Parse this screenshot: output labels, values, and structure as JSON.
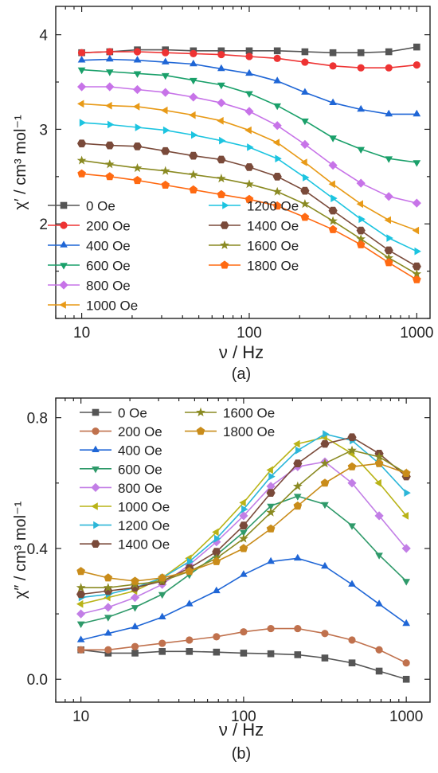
{
  "chart_data": [
    {
      "type": "line",
      "panel_label": "(a)",
      "xlabel": "ν / Hz",
      "ylabel": "χ′ / cm³ mol⁻¹",
      "xscale": "log",
      "xlim": [
        7,
        1200
      ],
      "ylim": [
        1.0,
        4.3
      ],
      "xticks": [
        10,
        100,
        1000
      ],
      "yticks": [
        2,
        3,
        4
      ],
      "legend_position": "bottom-left, two columns",
      "x": [
        10,
        14.7,
        21.5,
        31.6,
        46.4,
        68.1,
        100,
        147,
        215,
        316,
        464,
        681,
        1000
      ],
      "series": [
        {
          "name": "0 Oe",
          "color": "#555555",
          "marker": "square",
          "values": [
            3.81,
            3.82,
            3.84,
            3.84,
            3.83,
            3.83,
            3.83,
            3.83,
            3.82,
            3.81,
            3.81,
            3.82,
            3.87
          ]
        },
        {
          "name": "200 Oe",
          "color": "#ee3333",
          "marker": "circle",
          "values": [
            3.81,
            3.82,
            3.82,
            3.81,
            3.8,
            3.79,
            3.77,
            3.75,
            3.71,
            3.67,
            3.65,
            3.65,
            3.68
          ]
        },
        {
          "name": "400 Oe",
          "color": "#1f66d6",
          "marker": "triangle-up",
          "values": [
            3.73,
            3.74,
            3.73,
            3.71,
            3.69,
            3.64,
            3.59,
            3.51,
            3.39,
            3.28,
            3.21,
            3.16,
            3.16
          ]
        },
        {
          "name": "600 Oe",
          "color": "#1aa06a",
          "marker": "triangle-down",
          "values": [
            3.63,
            3.61,
            3.59,
            3.57,
            3.52,
            3.47,
            3.38,
            3.25,
            3.09,
            2.91,
            2.79,
            2.69,
            2.65
          ]
        },
        {
          "name": "800 Oe",
          "color": "#c773e8",
          "marker": "diamond",
          "values": [
            3.45,
            3.45,
            3.42,
            3.39,
            3.34,
            3.28,
            3.19,
            3.04,
            2.84,
            2.62,
            2.43,
            2.29,
            2.22
          ]
        },
        {
          "name": "1000 Oe",
          "color": "#e89a17",
          "marker": "triangle-left",
          "values": [
            3.27,
            3.25,
            3.24,
            3.2,
            3.15,
            3.09,
            2.99,
            2.86,
            2.65,
            2.42,
            2.21,
            2.04,
            1.93
          ]
        },
        {
          "name": "1200 Oe",
          "color": "#1cc4e0",
          "marker": "triangle-right",
          "values": [
            3.07,
            3.05,
            3.02,
            2.99,
            2.94,
            2.88,
            2.81,
            2.69,
            2.49,
            2.27,
            2.05,
            1.85,
            1.71
          ]
        },
        {
          "name": "1400 Oe",
          "color": "#7a4a3a",
          "marker": "hexagon",
          "values": [
            2.85,
            2.83,
            2.82,
            2.77,
            2.72,
            2.68,
            2.6,
            2.5,
            2.35,
            2.14,
            1.93,
            1.72,
            1.55
          ]
        },
        {
          "name": "1600 Oe",
          "color": "#8a8a22",
          "marker": "star",
          "values": [
            2.67,
            2.63,
            2.59,
            2.56,
            2.52,
            2.48,
            2.42,
            2.34,
            2.21,
            2.03,
            1.84,
            1.64,
            1.47
          ]
        },
        {
          "name": "1800 Oe",
          "color": "#ff6a12",
          "marker": "pentagon",
          "values": [
            2.53,
            2.5,
            2.46,
            2.41,
            2.36,
            2.31,
            2.26,
            2.19,
            2.07,
            1.94,
            1.78,
            1.59,
            1.41
          ]
        }
      ]
    },
    {
      "type": "line",
      "panel_label": "(b)",
      "xlabel": "ν / Hz",
      "ylabel": "χ″ / cm³ mol⁻¹",
      "xscale": "log",
      "xlim": [
        7,
        1400
      ],
      "ylim": [
        -0.07,
        0.86
      ],
      "xticks": [
        10,
        100,
        1000
      ],
      "yticks": [
        0.0,
        0.4,
        0.8
      ],
      "legend_position": "top-left, two columns",
      "x": [
        10,
        14.7,
        21.5,
        31.6,
        46.4,
        68.1,
        100,
        147,
        215,
        316,
        464,
        681,
        1000
      ],
      "series": [
        {
          "name": "0 Oe",
          "color": "#555555",
          "marker": "square",
          "values": [
            0.09,
            0.08,
            0.08,
            0.085,
            0.085,
            0.083,
            0.08,
            0.078,
            0.075,
            0.065,
            0.05,
            0.025,
            0.0
          ]
        },
        {
          "name": "200 Oe",
          "color": "#c0714d",
          "marker": "circle",
          "values": [
            0.09,
            0.09,
            0.1,
            0.11,
            0.12,
            0.13,
            0.145,
            0.155,
            0.155,
            0.14,
            0.12,
            0.09,
            0.05
          ]
        },
        {
          "name": "400 Oe",
          "color": "#1f66d6",
          "marker": "triangle-up",
          "values": [
            0.12,
            0.14,
            0.16,
            0.19,
            0.23,
            0.27,
            0.32,
            0.36,
            0.37,
            0.345,
            0.29,
            0.23,
            0.17
          ]
        },
        {
          "name": "600 Oe",
          "color": "#2f9a6a",
          "marker": "triangle-down",
          "values": [
            0.17,
            0.19,
            0.22,
            0.26,
            0.32,
            0.38,
            0.45,
            0.53,
            0.56,
            0.535,
            0.47,
            0.38,
            0.3
          ]
        },
        {
          "name": "800 Oe",
          "color": "#c27ee6",
          "marker": "diamond",
          "values": [
            0.2,
            0.22,
            0.25,
            0.29,
            0.35,
            0.42,
            0.5,
            0.59,
            0.65,
            0.665,
            0.6,
            0.5,
            0.4
          ]
        },
        {
          "name": "1000 Oe",
          "color": "#b9b317",
          "marker": "triangle-left",
          "values": [
            0.23,
            0.25,
            0.27,
            0.31,
            0.37,
            0.45,
            0.54,
            0.64,
            0.72,
            0.74,
            0.69,
            0.6,
            0.5
          ]
        },
        {
          "name": "1200 Oe",
          "color": "#2cb6d8",
          "marker": "triangle-right",
          "values": [
            0.25,
            0.26,
            0.28,
            0.31,
            0.36,
            0.43,
            0.52,
            0.62,
            0.7,
            0.75,
            0.73,
            0.66,
            0.57
          ]
        },
        {
          "name": "1400 Oe",
          "color": "#7a4a3a",
          "marker": "hexagon",
          "values": [
            0.26,
            0.27,
            0.28,
            0.3,
            0.34,
            0.39,
            0.47,
            0.57,
            0.66,
            0.72,
            0.74,
            0.69,
            0.62
          ]
        },
        {
          "name": "1600 Oe",
          "color": "#8a8a22",
          "marker": "star",
          "values": [
            0.28,
            0.28,
            0.29,
            0.3,
            0.33,
            0.37,
            0.43,
            0.51,
            0.59,
            0.66,
            0.7,
            0.68,
            0.63
          ]
        },
        {
          "name": "1800 Oe",
          "color": "#c98c1a",
          "marker": "pentagon",
          "values": [
            0.33,
            0.31,
            0.3,
            0.31,
            0.33,
            0.36,
            0.4,
            0.46,
            0.53,
            0.6,
            0.65,
            0.66,
            0.63
          ]
        }
      ]
    }
  ]
}
